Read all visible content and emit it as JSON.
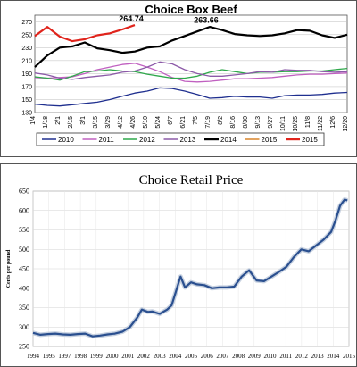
{
  "chart_data": [
    {
      "type": "line",
      "title": "Choice Box Beef",
      "xlabel": "",
      "ylabel": "",
      "ylim": [
        130,
        280
      ],
      "y_ticks": [
        130,
        150,
        170,
        190,
        210,
        230,
        250,
        270
      ],
      "x_categories": [
        "1/4",
        "1/18",
        "2/1",
        "2/15",
        "3/1",
        "3/15",
        "3/29",
        "4/12",
        "4/26",
        "5/10",
        "5/24",
        "6/7",
        "6/21",
        "7/5",
        "7/19",
        "8/2",
        "8/16",
        "8/30",
        "9/13",
        "9/27",
        "10/11",
        "10/25",
        "11/8",
        "11/22",
        "12/6",
        "12/20"
      ],
      "x_tick_labels": [
        "1/4",
        "1/18",
        "2/1",
        "2/15",
        "3/1",
        "3/15",
        "3/29",
        "4/12",
        "4/26",
        "5/10",
        "5/24",
        "6/7",
        "6/21",
        "7/5",
        "7/19",
        "8/2",
        "8/16",
        "8/30",
        "9/13",
        "9/27",
        "10/11",
        "10/25",
        "11/8",
        "11/22",
        "12/6",
        "12/20"
      ],
      "legend_position": "bottom",
      "grid": true,
      "annotations": [
        {
          "text": "264.74",
          "x": "4/26",
          "y": 266
        },
        {
          "text": "263.66",
          "x": "7/19",
          "y": 264
        }
      ],
      "series": [
        {
          "name": "2010",
          "color": "#1f2f8f",
          "values": [
            143,
            141,
            140,
            142,
            144,
            146,
            150,
            155,
            160,
            163,
            168,
            167,
            163,
            158,
            152,
            153,
            155,
            154,
            154,
            152,
            156,
            157,
            157,
            158,
            160,
            161
          ]
        },
        {
          "name": "2011",
          "color": "#c060c0",
          "values": [
            184,
            183,
            184,
            185,
            190,
            196,
            200,
            204,
            206,
            200,
            193,
            184,
            178,
            177,
            178,
            180,
            182,
            182,
            183,
            184,
            186,
            188,
            189,
            189,
            190,
            191
          ]
        },
        {
          "name": "2012",
          "color": "#2ea84a",
          "values": [
            185,
            183,
            180,
            186,
            193,
            194,
            196,
            194,
            193,
            189,
            186,
            183,
            183,
            186,
            192,
            196,
            193,
            190,
            192,
            192,
            193,
            193,
            194,
            194,
            196,
            198
          ]
        },
        {
          "name": "2013",
          "color": "#8c5aa8",
          "values": [
            191,
            188,
            183,
            181,
            184,
            186,
            188,
            192,
            194,
            200,
            208,
            205,
            196,
            190,
            186,
            186,
            188,
            190,
            193,
            192,
            196,
            195,
            195,
            193,
            192,
            193
          ]
        },
        {
          "name": "2014",
          "color": "#000000",
          "values": [
            200,
            218,
            230,
            232,
            238,
            229,
            226,
            222,
            224,
            230,
            232,
            241,
            248,
            255,
            262,
            257,
            251,
            249,
            248,
            249,
            252,
            257,
            256,
            249,
            245,
            250
          ]
        },
        {
          "name": "2015",
          "color": "#d8842a",
          "values": [
            null,
            null,
            null,
            null,
            null,
            null,
            null,
            null,
            null,
            null,
            null,
            null,
            null,
            null,
            null,
            null,
            null,
            null,
            null,
            null,
            null,
            null,
            null,
            null,
            null,
            null
          ]
        },
        {
          "name": "2015",
          "color": "#e0241c",
          "values": [
            248,
            262,
            247,
            240,
            243,
            249,
            252,
            258,
            264.74,
            null,
            null,
            null,
            null,
            null,
            null,
            null,
            null,
            null,
            null,
            null,
            null,
            null,
            null,
            null,
            null,
            null
          ]
        }
      ]
    },
    {
      "type": "line",
      "title": "Choice Retail Price",
      "xlabel": "",
      "ylabel": "Cents per pound",
      "ylim": [
        250,
        650
      ],
      "y_ticks": [
        250,
        300,
        350,
        400,
        450,
        500,
        550,
        600,
        650
      ],
      "x_tick_labels": [
        "1994",
        "1995",
        "1997",
        "1998",
        "1999",
        "2000",
        "2001",
        "2002",
        "2003",
        "2004",
        "2005",
        "2006",
        "2007",
        "2008",
        "2009",
        "2010",
        "2011",
        "2012",
        "2013",
        "2014",
        "2015"
      ],
      "xlim": [
        1994,
        2015.2
      ],
      "grid": true,
      "series": [
        {
          "name": "",
          "color": "#2a4f8f",
          "x": [
            1994,
            1994.5,
            1995,
            1995.5,
            1996,
            1996.5,
            1997,
            1997.5,
            1998,
            1998.5,
            1999,
            1999.5,
            2000,
            2000.5,
            2001,
            2001.3,
            2001.7,
            2002,
            2002.5,
            2003,
            2003.3,
            2003.6,
            2003.9,
            2004.2,
            2004.6,
            2005,
            2005.5,
            2006,
            2006.5,
            2007,
            2007.5,
            2008,
            2008.5,
            2009,
            2009.5,
            2010,
            2010.5,
            2011,
            2011.5,
            2012,
            2012.5,
            2013,
            2013.5,
            2014,
            2014.3,
            2014.6,
            2014.9,
            2015.1
          ],
          "values": [
            285,
            280,
            282,
            283,
            281,
            280,
            282,
            283,
            276,
            278,
            281,
            283,
            288,
            300,
            325,
            345,
            339,
            340,
            334,
            345,
            356,
            393,
            430,
            402,
            415,
            410,
            408,
            400,
            402,
            402,
            404,
            430,
            446,
            420,
            418,
            430,
            442,
            455,
            480,
            500,
            495,
            510,
            525,
            545,
            575,
            612,
            628,
            626
          ]
        }
      ]
    }
  ]
}
